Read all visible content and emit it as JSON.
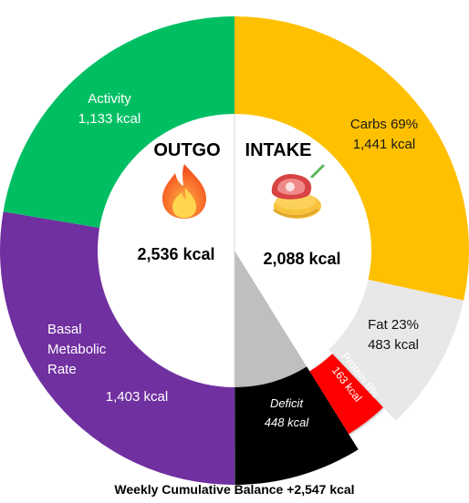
{
  "chart_data": {
    "type": "pie",
    "subtype": "split-donut",
    "outgo": {
      "title": "OUTGO",
      "total_label": "2,536 kcal",
      "icon": "fire-icon",
      "slices": [
        {
          "name": "Activity",
          "value": 1133,
          "value_label": "1,133 kcal",
          "color": "#00BF63"
        },
        {
          "name": "Basal Metabolic Rate",
          "name_lines": [
            "Basal",
            "Metabolic",
            "Rate"
          ],
          "value": 1403,
          "value_label": "1,403 kcal",
          "color": "#7030A0"
        }
      ]
    },
    "intake": {
      "title": "INTAKE",
      "total_label": "2,088 kcal",
      "icon": "food-icon",
      "slices": [
        {
          "name": "Carbs",
          "percent_label": "69%",
          "value": 1441,
          "value_label": "1,441 kcal",
          "color": "#FFC000"
        },
        {
          "name": "Fat",
          "percent_label": "23%",
          "value": 483,
          "value_label": "483 kcal",
          "color": "#E8E8E8"
        },
        {
          "name": "Protein",
          "percent_label": "8%",
          "value": 163,
          "value_label": "163 kcal",
          "color": "#FF0000"
        },
        {
          "name": "Deficit",
          "value": 448,
          "value_label": "448 kcal",
          "color": "#000000",
          "inner_color": "#BFBFBF"
        }
      ]
    },
    "footer": "Weekly Cumulative Balance +2,547 kcal"
  }
}
